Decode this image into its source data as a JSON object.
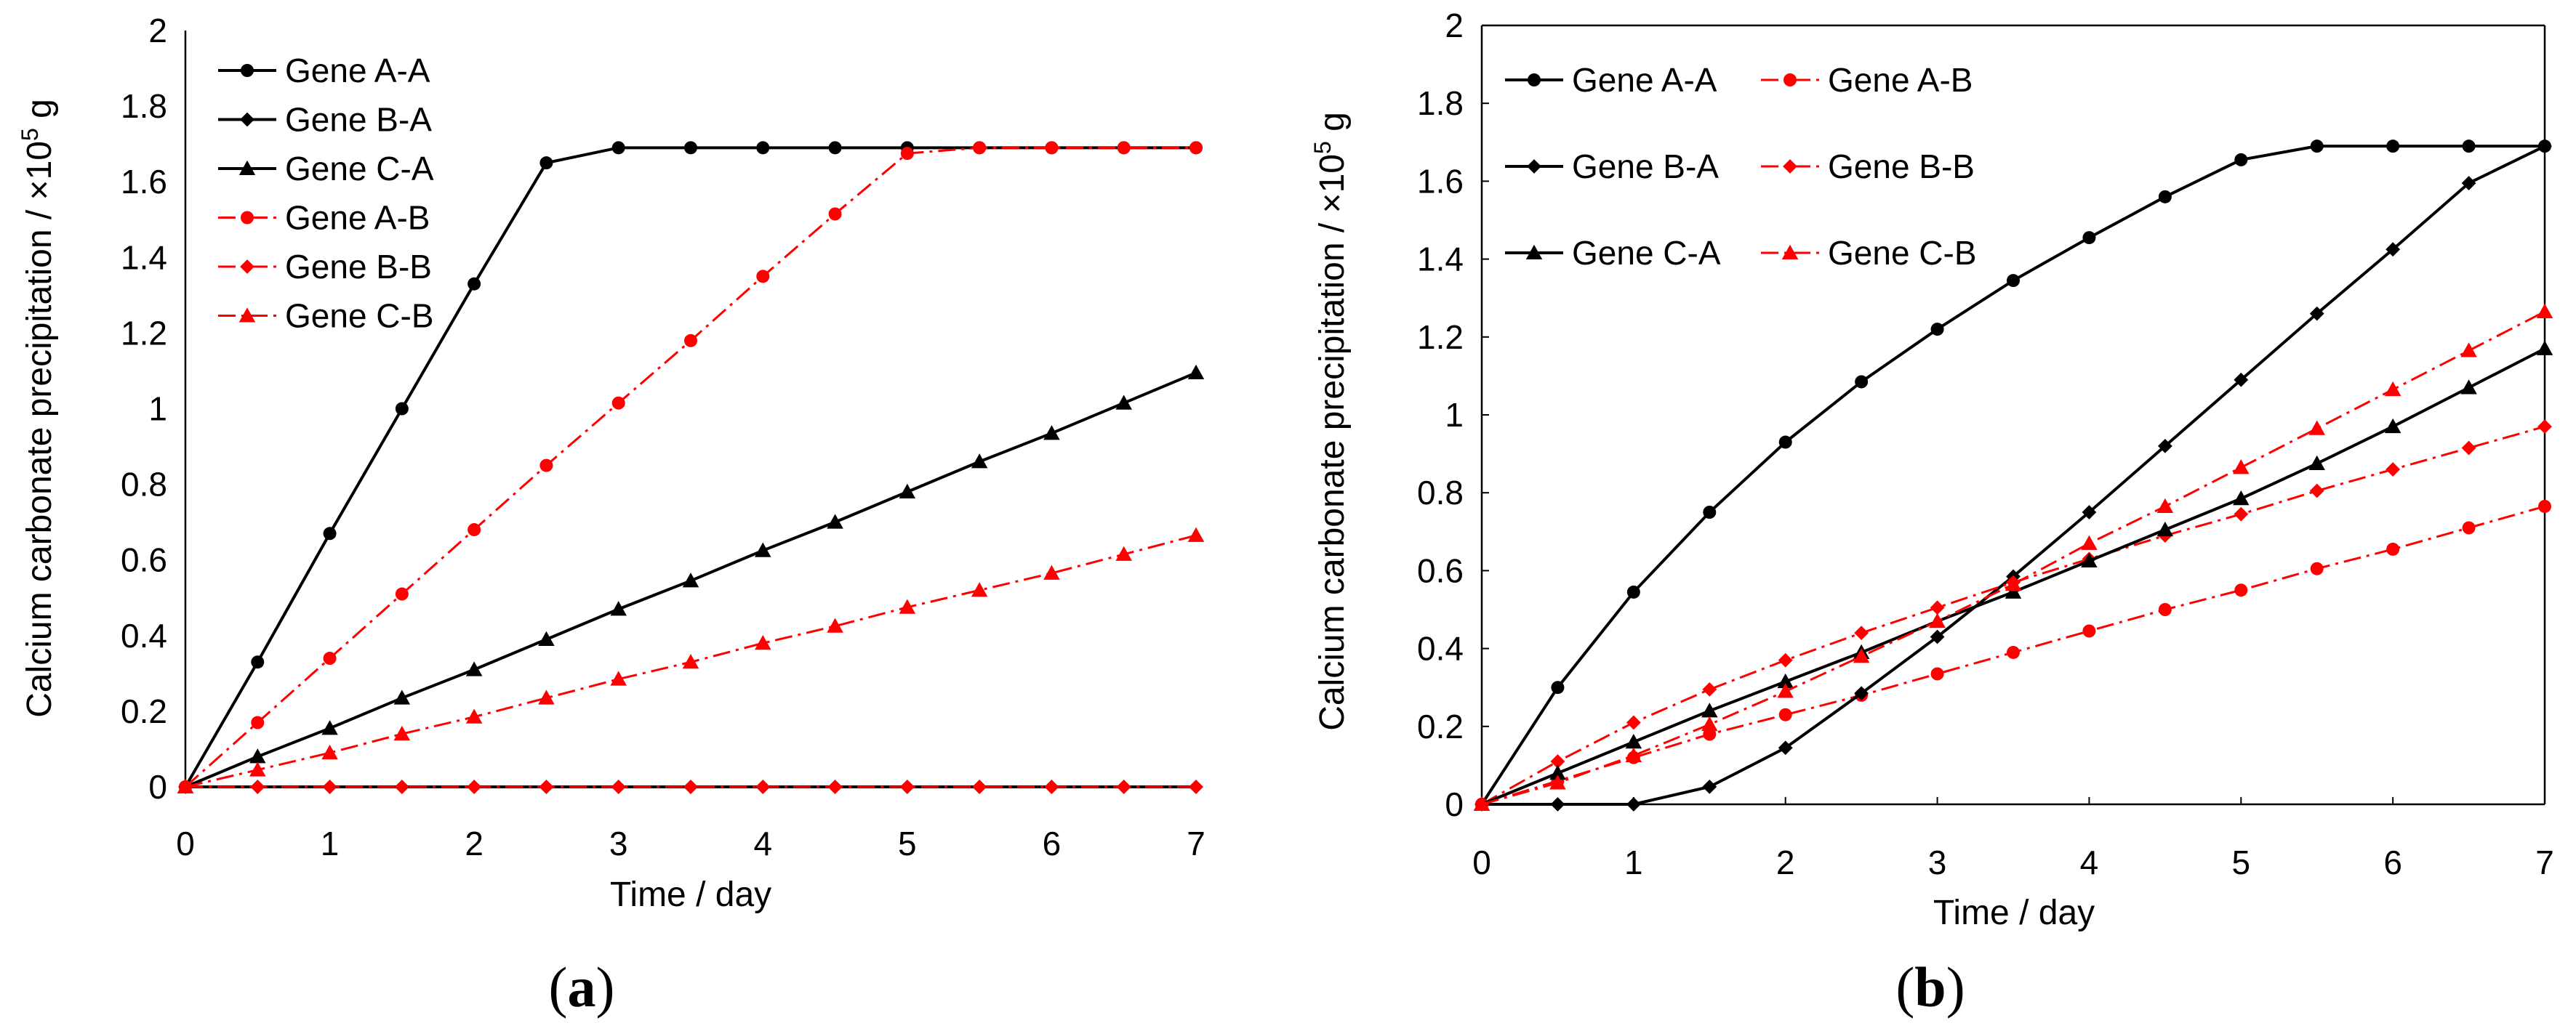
{
  "figure": {
    "label_open": "(",
    "label_close": ")"
  },
  "chart_data": [
    {
      "type": "line",
      "panel": "a",
      "xlabel": "Time / day",
      "ylabel": "Calcium carbonate precipitation  / ×10",
      "ylabel_sup": "5",
      "ylabel_unit": " g",
      "xlim": [
        0,
        7
      ],
      "ylim": [
        0,
        2
      ],
      "xticks": [
        "0",
        "1",
        "2",
        "3",
        "4",
        "5",
        "6",
        "7"
      ],
      "yticks": [
        "0",
        "0.2",
        "0.4",
        "0.6",
        "0.8",
        "1",
        "1.2",
        "1.4",
        "1.6",
        "1.8",
        "2"
      ],
      "grid": false,
      "legend": {
        "position": "top-left",
        "columns": 1
      },
      "x": [
        0,
        0.5,
        1,
        1.5,
        2,
        2.5,
        3,
        3.5,
        4,
        4.5,
        5,
        5.5,
        6,
        6.5,
        7
      ],
      "series": [
        {
          "name": "Gene A-A",
          "color": "#000000",
          "marker": "circle",
          "dash": "solid",
          "values": [
            0,
            0.33,
            0.67,
            1.0,
            1.33,
            1.65,
            1.69,
            1.69,
            1.69,
            1.69,
            1.69,
            1.69,
            1.69,
            1.69,
            1.69
          ]
        },
        {
          "name": "Gene B-A",
          "color": "#000000",
          "marker": "diamond",
          "dash": "solid",
          "values": [
            0,
            0,
            0,
            0,
            0,
            0,
            0,
            0,
            0,
            0,
            0,
            0,
            0,
            0,
            0
          ]
        },
        {
          "name": "Gene C-A",
          "color": "#000000",
          "marker": "triangle",
          "dash": "solid",
          "values": [
            0,
            0.08,
            0.155,
            0.235,
            0.31,
            0.39,
            0.47,
            0.545,
            0.625,
            0.7,
            0.78,
            0.86,
            0.935,
            1.015,
            1.095
          ]
        },
        {
          "name": "Gene A-B",
          "color": "#ff0000",
          "marker": "circle",
          "dash": "dashdot",
          "values": [
            0,
            0.17,
            0.34,
            0.51,
            0.68,
            0.85,
            1.015,
            1.18,
            1.35,
            1.515,
            1.675,
            1.69,
            1.69,
            1.69,
            1.69
          ]
        },
        {
          "name": "Gene B-B",
          "color": "#ff0000",
          "marker": "diamond",
          "dash": "dashdot",
          "values": [
            0,
            0,
            0,
            0,
            0,
            0,
            0,
            0,
            0,
            0,
            0,
            0,
            0,
            0,
            0
          ]
        },
        {
          "name": "Gene C-B",
          "color": "#ff0000",
          "marker": "triangle",
          "dash": "dashdot",
          "values": [
            0,
            0.045,
            0.09,
            0.14,
            0.185,
            0.235,
            0.285,
            0.33,
            0.38,
            0.425,
            0.475,
            0.52,
            0.565,
            0.615,
            0.665
          ]
        }
      ]
    },
    {
      "type": "line",
      "panel": "b",
      "xlabel": "Time / day",
      "ylabel": "Calcium carbonate precipitation  / ×10",
      "ylabel_sup": "5",
      "ylabel_unit": " g",
      "xlim": [
        0,
        7
      ],
      "ylim": [
        0,
        2
      ],
      "xticks": [
        "0",
        "1",
        "2",
        "3",
        "4",
        "5",
        "6",
        "7"
      ],
      "yticks": [
        "0",
        "0.2",
        "0.4",
        "0.6",
        "0.8",
        "1",
        "1.2",
        "1.4",
        "1.6",
        "1.8",
        "2"
      ],
      "grid": false,
      "legend": {
        "position": "top-left",
        "columns": 2
      },
      "x": [
        0,
        0.5,
        1,
        1.5,
        2,
        2.5,
        3,
        3.5,
        4,
        4.5,
        5,
        5.5,
        6,
        6.5,
        7
      ],
      "series": [
        {
          "name": "Gene A-A",
          "color": "#000000",
          "marker": "circle",
          "dash": "solid",
          "values": [
            0,
            0.3,
            0.545,
            0.75,
            0.93,
            1.085,
            1.22,
            1.345,
            1.455,
            1.56,
            1.655,
            1.69,
            1.69,
            1.69,
            1.69
          ]
        },
        {
          "name": "Gene A-B",
          "color": "#ff0000",
          "marker": "circle",
          "dash": "dashdot",
          "values": [
            0,
            0.06,
            0.12,
            0.18,
            0.23,
            0.28,
            0.335,
            0.39,
            0.445,
            0.5,
            0.55,
            0.605,
            0.655,
            0.71,
            0.765
          ]
        },
        {
          "name": "Gene B-A",
          "color": "#000000",
          "marker": "diamond",
          "dash": "solid",
          "values": [
            0,
            0,
            0,
            0.045,
            0.145,
            0.285,
            0.43,
            0.585,
            0.75,
            0.92,
            1.09,
            1.26,
            1.425,
            1.595,
            1.69
          ]
        },
        {
          "name": "Gene B-B",
          "color": "#ff0000",
          "marker": "diamond",
          "dash": "dashdot",
          "values": [
            0,
            0.11,
            0.21,
            0.295,
            0.37,
            0.44,
            0.505,
            0.57,
            0.63,
            0.69,
            0.745,
            0.805,
            0.86,
            0.915,
            0.97
          ]
        },
        {
          "name": "Gene C-A",
          "color": "#000000",
          "marker": "triangle",
          "dash": "solid",
          "values": [
            0,
            0.08,
            0.16,
            0.24,
            0.315,
            0.39,
            0.47,
            0.545,
            0.625,
            0.705,
            0.785,
            0.875,
            0.97,
            1.07,
            1.17
          ]
        },
        {
          "name": "Gene C-B",
          "color": "#ff0000",
          "marker": "triangle",
          "dash": "dashdot",
          "values": [
            0,
            0.055,
            0.125,
            0.205,
            0.29,
            0.38,
            0.47,
            0.565,
            0.67,
            0.765,
            0.865,
            0.965,
            1.065,
            1.165,
            1.265
          ]
        }
      ]
    }
  ]
}
